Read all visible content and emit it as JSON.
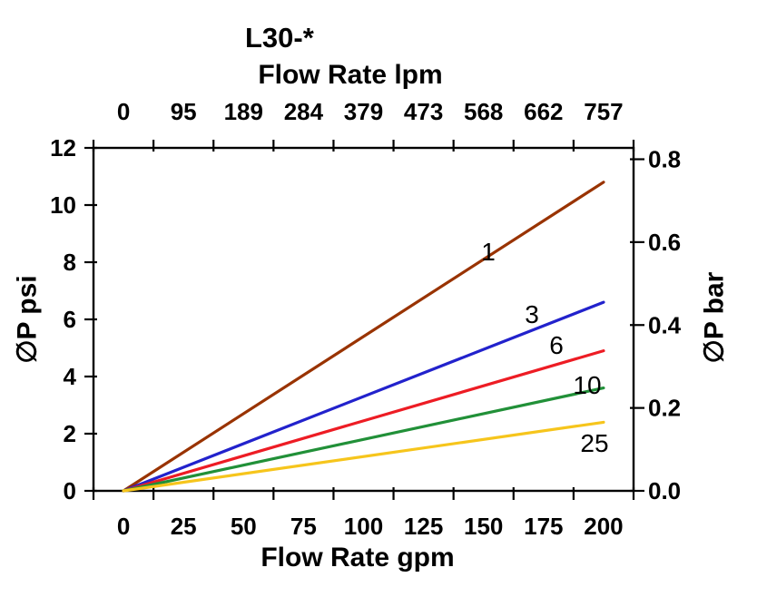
{
  "chart_data": {
    "type": "line",
    "title": "L30-*",
    "top_axis": {
      "label": "Flow Rate lpm",
      "ticks": [
        "0",
        "95",
        "189",
        "284",
        "379",
        "473",
        "568",
        "662",
        "757"
      ]
    },
    "bottom_axis": {
      "label": "Flow Rate gpm",
      "ticks": [
        "0",
        "25",
        "50",
        "75",
        "100",
        "125",
        "150",
        "175",
        "200"
      ],
      "range_gpm": [
        0,
        200
      ]
    },
    "left_axis": {
      "label": "∅P psi",
      "ticks": [
        "12",
        "10",
        "8",
        "6",
        "4",
        "2",
        "0"
      ],
      "range_psi": [
        0,
        12
      ]
    },
    "right_axis": {
      "label": "∅P bar",
      "ticks": [
        "0.8",
        "0.6",
        "0.4",
        "0.2",
        "0.0"
      ],
      "range_bar": [
        0,
        0.8
      ]
    },
    "grid": false,
    "legend": "inline-labels-on-lines",
    "series": [
      {
        "name": "1",
        "color": "#993300",
        "x_gpm": [
          0,
          200
        ],
        "y_psi": [
          0,
          10.8
        ]
      },
      {
        "name": "3",
        "color": "#2222cc",
        "x_gpm": [
          0,
          200
        ],
        "y_psi": [
          0,
          6.6
        ]
      },
      {
        "name": "6",
        "color": "#ed1c24",
        "x_gpm": [
          0,
          200
        ],
        "y_psi": [
          0,
          4.9
        ]
      },
      {
        "name": "10",
        "color": "#219038",
        "x_gpm": [
          0,
          200
        ],
        "y_psi": [
          0,
          3.6
        ]
      },
      {
        "name": "25",
        "color": "#f6c51c",
        "x_gpm": [
          0,
          200
        ],
        "y_psi": [
          0,
          2.4
        ]
      }
    ],
    "axis_color": "#000000",
    "background_color": "#ffffff",
    "notes": "Pressure drop vs flow rate curves for element grades 1, 3, 6, 10, 25; lines are straight from origin (0 gpm, 0 psi) to 200 gpm endpoint; psi-to-bar conversion 1 bar = 14.5038 psi"
  }
}
